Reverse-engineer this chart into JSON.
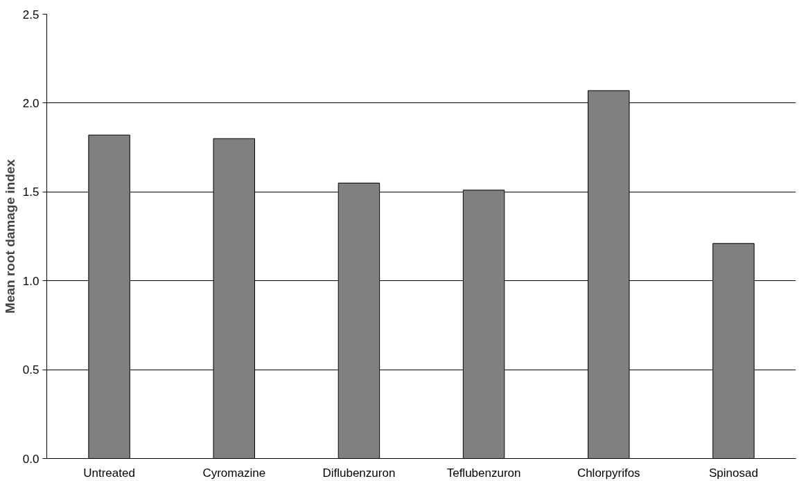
{
  "chart_data": {
    "type": "bar",
    "ylabel": "Mean root damage index",
    "categories": [
      "Untreated",
      "Cyromazine",
      "Diflubenzuron",
      "Teflubenzuron",
      "Chlorpyrifos",
      "Spinosad"
    ],
    "values": [
      1.82,
      1.8,
      1.55,
      1.51,
      2.07,
      1.21
    ],
    "color": "#808080",
    "ylim": [
      0,
      2.5
    ],
    "yticks": [
      {
        "value": 0,
        "label": "0.0"
      },
      {
        "value": 0.5,
        "label": "0.5"
      },
      {
        "value": 1,
        "label": "1.0"
      },
      {
        "value": 1.5,
        "label": "1.5"
      },
      {
        "value": 2,
        "label": "2.0"
      },
      {
        "value": 2.5,
        "label": "2.5"
      }
    ],
    "grid": "y"
  }
}
